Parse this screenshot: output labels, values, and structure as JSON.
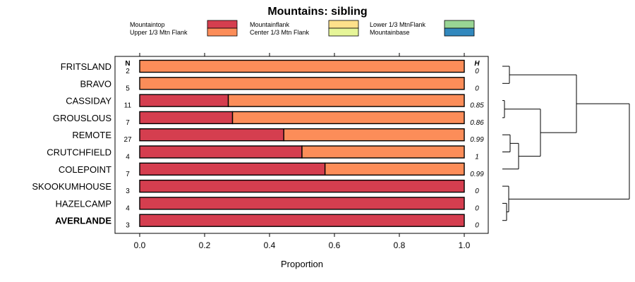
{
  "chart_data": {
    "type": "bar",
    "orientation": "horizontal",
    "stacked": true,
    "title": "Mountains: sibling",
    "xlabel": "Proportion",
    "ylabel": "",
    "xlim": [
      0,
      1
    ],
    "x_ticks": [
      "0.0",
      "0.2",
      "0.4",
      "0.6",
      "0.8",
      "1.0"
    ],
    "x_tick_values": [
      0,
      0.2,
      0.4,
      0.6,
      0.8,
      1.0
    ],
    "n_header": "N",
    "h_header": "H",
    "legend": [
      {
        "name": "Mountaintop",
        "color": "#d53e4f"
      },
      {
        "name": "Upper 1/3 Mtn Flank",
        "color": "#fc8d59"
      },
      {
        "name": "Mountainflank",
        "color": "#fee08b"
      },
      {
        "name": "Center 1/3 Mtn Flank",
        "color": "#e6f598"
      },
      {
        "name": "Lower 1/3 MtnFlank",
        "color": "#99d594"
      },
      {
        "name": "Mountainbase",
        "color": "#3288bd"
      }
    ],
    "categories": [
      "FRITSLAND",
      "BRAVO",
      "CASSIDAY",
      "GROUSLOUS",
      "REMOTE",
      "CRUTCHFIELD",
      "COLEPOINT",
      "SKOOKUMHOUSE",
      "HAZELCAMP",
      "AVERLANDE"
    ],
    "bold_category": "AVERLANDE",
    "n": [
      "2",
      "5",
      "11",
      "7",
      "27",
      "4",
      "7",
      "3",
      "4",
      "3"
    ],
    "h": [
      "0",
      "0",
      "0.85",
      "0.86",
      "0.99",
      "1",
      "0.99",
      "0",
      "0",
      "0"
    ],
    "series": [
      {
        "name": "Mountaintop",
        "values": [
          0,
          0,
          0.273,
          0.286,
          0.444,
          0.5,
          0.571,
          1,
          1,
          1
        ]
      },
      {
        "name": "Upper 1/3 Mtn Flank",
        "values": [
          1,
          1,
          0.727,
          0.714,
          0.556,
          0.5,
          0.429,
          0,
          0,
          0
        ]
      },
      {
        "name": "Mountainflank",
        "values": [
          0,
          0,
          0,
          0,
          0,
          0,
          0,
          0,
          0,
          0
        ]
      },
      {
        "name": "Center 1/3 Mtn Flank",
        "values": [
          0,
          0,
          0,
          0,
          0,
          0,
          0,
          0,
          0,
          0
        ]
      },
      {
        "name": "Lower 1/3 MtnFlank",
        "values": [
          0,
          0,
          0,
          0,
          0,
          0,
          0,
          0,
          0,
          0
        ]
      },
      {
        "name": "Mountainbase",
        "values": [
          0,
          0,
          0,
          0,
          0,
          0,
          0,
          0,
          0,
          0
        ]
      }
    ],
    "dendrogram": "hierarchical clustering of rows shown at right"
  }
}
